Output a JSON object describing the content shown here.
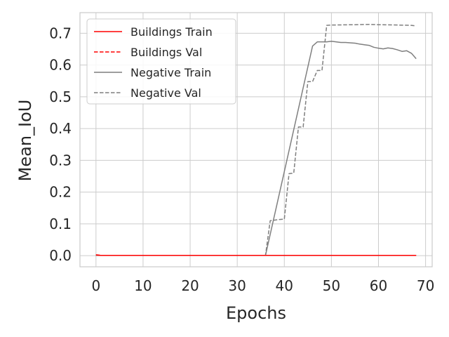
{
  "chart_data": {
    "type": "line",
    "title": "",
    "xlabel": "Epochs",
    "ylabel": "Mean_IoU",
    "xlim": [
      -3.4,
      71.4
    ],
    "ylim": [
      -0.035,
      0.765
    ],
    "xticks": [
      0,
      10,
      20,
      30,
      40,
      50,
      60,
      70
    ],
    "yticks": [
      0.0,
      0.1,
      0.2,
      0.3,
      0.4,
      0.5,
      0.6,
      0.7
    ],
    "xtick_labels": [
      "0",
      "10",
      "20",
      "30",
      "40",
      "50",
      "60",
      "70"
    ],
    "ytick_labels": [
      "0.0",
      "0.1",
      "0.2",
      "0.3",
      "0.4",
      "0.5",
      "0.6",
      "0.7"
    ],
    "grid": true,
    "legend_position": "top-left",
    "series": [
      {
        "name": "Buildings Train",
        "color": "#ff0000",
        "dash": "solid",
        "points": [
          [
            0,
            0.002
          ],
          [
            1,
            0.001
          ],
          [
            36,
            0.001
          ],
          [
            68,
            0.001
          ]
        ]
      },
      {
        "name": "Buildings Val",
        "color": "#ff0000",
        "dash": "dashed",
        "points": [
          [
            0,
            0.003
          ],
          [
            1,
            0.001
          ],
          [
            36,
            0.001
          ],
          [
            68,
            0.001
          ]
        ]
      },
      {
        "name": "Negative Train",
        "color": "#7f7f7f",
        "dash": "solid",
        "points": [
          [
            0,
            0.001
          ],
          [
            36,
            0.001
          ],
          [
            46,
            0.66
          ],
          [
            47,
            0.673
          ],
          [
            48,
            0.673
          ],
          [
            49,
            0.673
          ],
          [
            50,
            0.675
          ],
          [
            51,
            0.673
          ],
          [
            52,
            0.671
          ],
          [
            53,
            0.671
          ],
          [
            54,
            0.67
          ],
          [
            55,
            0.669
          ],
          [
            56,
            0.666
          ],
          [
            57,
            0.664
          ],
          [
            58,
            0.662
          ],
          [
            59,
            0.656
          ],
          [
            60,
            0.653
          ],
          [
            61,
            0.651
          ],
          [
            62,
            0.654
          ],
          [
            63,
            0.652
          ],
          [
            64,
            0.648
          ],
          [
            65,
            0.643
          ],
          [
            66,
            0.645
          ],
          [
            67,
            0.637
          ],
          [
            68,
            0.62
          ]
        ]
      },
      {
        "name": "Negative Val",
        "color": "#7f7f7f",
        "dash": "dashed",
        "points": [
          [
            0,
            0.001
          ],
          [
            36,
            0.001
          ],
          [
            37,
            0.11
          ],
          [
            38,
            0.112
          ],
          [
            39,
            0.114
          ],
          [
            40,
            0.115
          ],
          [
            41,
            0.258
          ],
          [
            42,
            0.26
          ],
          [
            43,
            0.405
          ],
          [
            44,
            0.405
          ],
          [
            45,
            0.548
          ],
          [
            46,
            0.548
          ],
          [
            47,
            0.583
          ],
          [
            48,
            0.583
          ],
          [
            49,
            0.725
          ],
          [
            50,
            0.726
          ],
          [
            55,
            0.727
          ],
          [
            58,
            0.728
          ],
          [
            60,
            0.727
          ],
          [
            64,
            0.726
          ],
          [
            67,
            0.725
          ],
          [
            68,
            0.723
          ]
        ]
      }
    ]
  }
}
